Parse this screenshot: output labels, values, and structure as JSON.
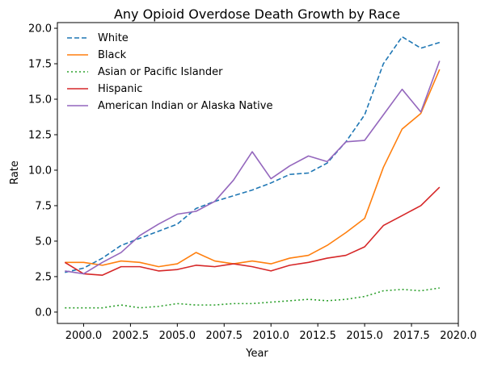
{
  "chart_data": {
    "type": "line",
    "title": "Any Opioid Overdose Death Growth by Race",
    "xlabel": "Year",
    "ylabel": "Rate",
    "xlim": [
      1998.6,
      2020.0
    ],
    "ylim": [
      -0.8,
      20.4
    ],
    "xticks": [
      2000.0,
      2002.5,
      2005.0,
      2007.5,
      2010.0,
      2012.5,
      2015.0,
      2017.5,
      2020.0
    ],
    "xtick_labels": [
      "2000.0",
      "2002.5",
      "2005.0",
      "2007.5",
      "2010.0",
      "2012.5",
      "2015.0",
      "2017.5",
      "2020.0"
    ],
    "yticks": [
      0.0,
      2.5,
      5.0,
      7.5,
      10.0,
      12.5,
      15.0,
      17.5,
      20.0
    ],
    "ytick_labels": [
      "0.0",
      "2.5",
      "5.0",
      "7.5",
      "10.0",
      "12.5",
      "15.0",
      "17.5",
      "20.0"
    ],
    "grid": false,
    "legend_position": "top-left",
    "x": [
      1999,
      2000,
      2001,
      2002,
      2003,
      2004,
      2005,
      2006,
      2007,
      2008,
      2009,
      2010,
      2011,
      2012,
      2013,
      2014,
      2015,
      2016,
      2017,
      2018,
      2019
    ],
    "series": [
      {
        "name": "White",
        "color": "#1f77b4",
        "dash": "dashed",
        "values": [
          2.8,
          3.1,
          3.8,
          4.7,
          5.2,
          5.7,
          6.2,
          7.3,
          7.8,
          8.2,
          8.6,
          9.1,
          9.7,
          9.8,
          10.5,
          12.0,
          13.9,
          17.5,
          19.4,
          18.6,
          19.0
        ]
      },
      {
        "name": "Black",
        "color": "#ff7f0e",
        "dash": "solid",
        "values": [
          3.5,
          3.5,
          3.3,
          3.6,
          3.5,
          3.2,
          3.4,
          4.2,
          3.6,
          3.4,
          3.6,
          3.4,
          3.8,
          4.0,
          4.7,
          5.6,
          6.6,
          10.2,
          12.9,
          14.0,
          17.1
        ]
      },
      {
        "name": "Asian or Pacific Islander",
        "color": "#2ca02c",
        "dash": "dotted",
        "values": [
          0.3,
          0.3,
          0.3,
          0.5,
          0.3,
          0.4,
          0.6,
          0.5,
          0.5,
          0.6,
          0.6,
          0.7,
          0.8,
          0.9,
          0.8,
          0.9,
          1.1,
          1.5,
          1.6,
          1.5,
          1.7
        ]
      },
      {
        "name": "Hispanic",
        "color": "#d62728",
        "dash": "solid",
        "values": [
          3.5,
          2.7,
          2.6,
          3.2,
          3.2,
          2.9,
          3.0,
          3.3,
          3.2,
          3.4,
          3.2,
          2.9,
          3.3,
          3.5,
          3.8,
          4.0,
          4.6,
          6.1,
          6.8,
          7.5,
          8.8
        ]
      },
      {
        "name": "American Indian or Alaska Native",
        "color": "#9467bd",
        "dash": "solid",
        "values": [
          2.9,
          2.7,
          3.5,
          4.2,
          5.4,
          6.2,
          6.9,
          7.1,
          7.8,
          9.3,
          11.3,
          9.4,
          10.3,
          11.0,
          10.6,
          12.0,
          12.1,
          13.9,
          15.7,
          14.1,
          17.7
        ]
      }
    ]
  }
}
